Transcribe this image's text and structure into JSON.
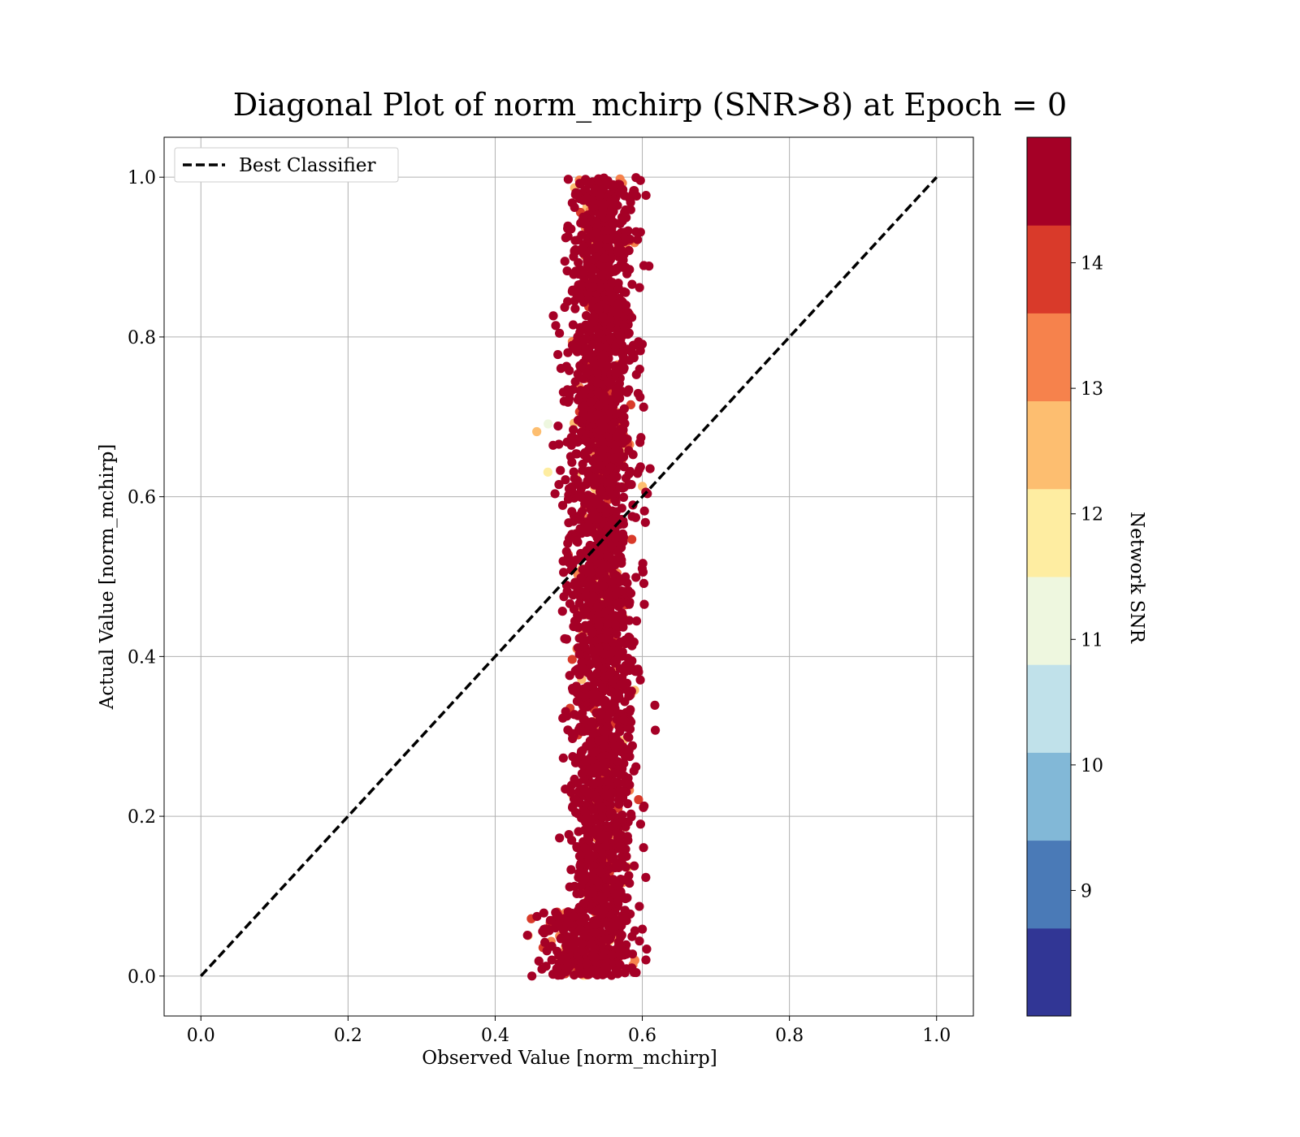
{
  "chart_data": {
    "type": "scatter",
    "title": "Diagonal Plot of norm_mchirp (SNR>8) at Epoch = 0",
    "xlabel": "Observed Value [norm_mchirp]",
    "ylabel": "Actual Value [norm_mchirp]",
    "xlim": [
      -0.05,
      1.05
    ],
    "ylim": [
      -0.05,
      1.05
    ],
    "x_ticks": [
      "0.0",
      "0.2",
      "0.4",
      "0.6",
      "0.8",
      "1.0"
    ],
    "y_ticks": [
      "0.0",
      "0.2",
      "0.4",
      "0.6",
      "0.8",
      "1.0"
    ],
    "grid": true,
    "legend": {
      "placement": "upper-left",
      "entries": [
        {
          "label": "Best Classifier",
          "style": "black dashed line"
        }
      ]
    },
    "diagonal_line": {
      "name": "Best Classifier",
      "x": [
        0.0,
        1.0
      ],
      "y": [
        0.0,
        1.0
      ],
      "color": "#000000",
      "style": "dashed"
    },
    "scatter_cloud": {
      "x_range": [
        0.42,
        0.64
      ],
      "x_center": 0.545,
      "y_range": [
        0.0,
        1.0
      ],
      "dominant_snr_color": "#a50026",
      "low_snr_points_on_left_edge": true
    },
    "colorbar": {
      "label": "Network SNR",
      "range": [
        8.0,
        15.0
      ],
      "ticks": [
        "9",
        "10",
        "11",
        "12",
        "13",
        "14"
      ],
      "tick_values": [
        9,
        10,
        11,
        12,
        13,
        14
      ],
      "bands": [
        {
          "from": 8.0,
          "to": 8.7,
          "color": "#313695"
        },
        {
          "from": 8.7,
          "to": 9.4,
          "color": "#4a7ab7"
        },
        {
          "from": 9.4,
          "to": 10.1,
          "color": "#82b8d7"
        },
        {
          "from": 10.1,
          "to": 10.8,
          "color": "#c0e1ea"
        },
        {
          "from": 10.8,
          "to": 11.5,
          "color": "#eef7df"
        },
        {
          "from": 11.5,
          "to": 12.2,
          "color": "#feeda1"
        },
        {
          "from": 12.2,
          "to": 12.9,
          "color": "#fdbe70"
        },
        {
          "from": 12.9,
          "to": 13.6,
          "color": "#f6824c"
        },
        {
          "from": 13.6,
          "to": 14.3,
          "color": "#d93a2a"
        },
        {
          "from": 14.3,
          "to": 15.0,
          "color": "#a50026"
        }
      ]
    }
  }
}
